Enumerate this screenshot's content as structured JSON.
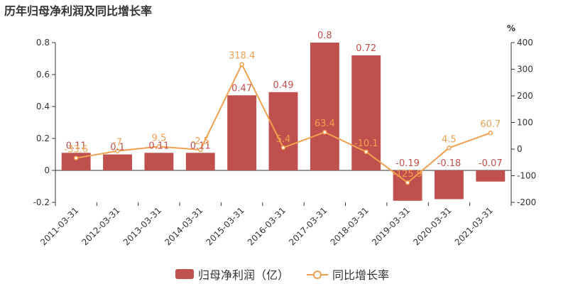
{
  "title": "历年归母净利润及同比增长率",
  "colors": {
    "bar": "#c0504d",
    "line": "#f0a050",
    "bar_label": "#c0504d",
    "line_label": "#f0a050"
  },
  "chart_data": {
    "type": "bar",
    "categories": [
      "2011-03-31",
      "2012-03-31",
      "2013-03-31",
      "2014-03-31",
      "2015-03-31",
      "2016-03-31",
      "2017-03-31",
      "2018-03-31",
      "2019-03-31",
      "2020-03-31",
      "2021-03-31"
    ],
    "series": [
      {
        "name": "归母净利润（亿）",
        "type": "bar",
        "axis": "left",
        "values": [
          0.11,
          0.1,
          0.11,
          0.11,
          0.47,
          0.49,
          0.8,
          0.72,
          -0.19,
          -0.18,
          -0.07
        ],
        "labels": [
          "0.11",
          "0.1",
          "0.11",
          "0.11",
          "0.47",
          "0.49",
          "0.8",
          "0.72",
          "-0.19",
          "-0.18",
          "-0.07"
        ]
      },
      {
        "name": "同比增长率",
        "type": "line",
        "axis": "right",
        "values": [
          -33.6,
          -7,
          9.5,
          -2.5,
          318.4,
          5.4,
          63.4,
          -10.1,
          -125.9,
          4.5,
          60.7
        ],
        "labels": [
          "-33.6",
          "-7",
          "9.5",
          "-2.5",
          "318.4",
          "5.4",
          "63.4",
          "-10.1",
          "-125.9",
          "4.5",
          "60.7"
        ]
      }
    ],
    "y_left": {
      "min": -0.2,
      "max": 0.8,
      "ticks": [
        "-0.2",
        "0",
        "0.2",
        "0.4",
        "0.6",
        "0.8"
      ]
    },
    "y_right": {
      "min": -200,
      "max": 400,
      "unit": "%",
      "ticks": [
        "-200",
        "-100",
        "0",
        "100",
        "200",
        "300",
        "400"
      ]
    },
    "grid": false,
    "legend_position": "bottom-center"
  }
}
